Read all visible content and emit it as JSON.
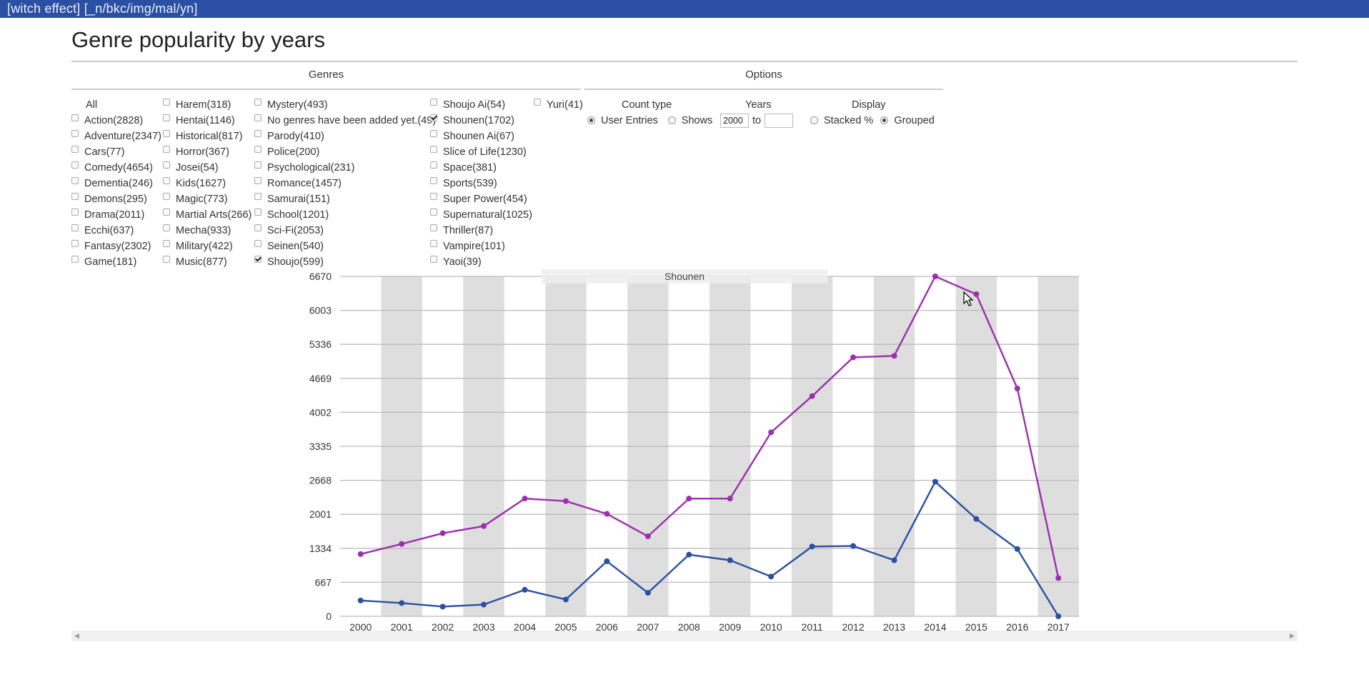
{
  "app": {
    "header": "[witch effect] [_n/bkc/img/mal/yn]"
  },
  "page": {
    "title": "Genre popularity by years"
  },
  "genres": {
    "heading": "Genres",
    "all_label": "All",
    "columns": [
      [
        {
          "label": "Action(2828)",
          "checked": false
        },
        {
          "label": "Adventure(2347)",
          "checked": false
        },
        {
          "label": "Cars(77)",
          "checked": false
        },
        {
          "label": "Comedy(4654)",
          "checked": false
        },
        {
          "label": "Dementia(246)",
          "checked": false
        },
        {
          "label": "Demons(295)",
          "checked": false
        },
        {
          "label": "Drama(2011)",
          "checked": false
        },
        {
          "label": "Ecchi(637)",
          "checked": false
        },
        {
          "label": "Fantasy(2302)",
          "checked": false
        },
        {
          "label": "Game(181)",
          "checked": false
        }
      ],
      [
        {
          "label": "Harem(318)",
          "checked": false
        },
        {
          "label": "Hentai(1146)",
          "checked": false
        },
        {
          "label": "Historical(817)",
          "checked": false
        },
        {
          "label": "Horror(367)",
          "checked": false
        },
        {
          "label": "Josei(54)",
          "checked": false
        },
        {
          "label": "Kids(1627)",
          "checked": false
        },
        {
          "label": "Magic(773)",
          "checked": false
        },
        {
          "label": "Martial Arts(266)",
          "checked": false
        },
        {
          "label": "Mecha(933)",
          "checked": false
        },
        {
          "label": "Military(422)",
          "checked": false
        },
        {
          "label": "Music(877)",
          "checked": false
        }
      ],
      [
        {
          "label": "Mystery(493)",
          "checked": false
        },
        {
          "label": "No genres have been added yet.(49)",
          "checked": false
        },
        {
          "label": "Parody(410)",
          "checked": false
        },
        {
          "label": "Police(200)",
          "checked": false
        },
        {
          "label": "Psychological(231)",
          "checked": false
        },
        {
          "label": "Romance(1457)",
          "checked": false
        },
        {
          "label": "Samurai(151)",
          "checked": false
        },
        {
          "label": "School(1201)",
          "checked": false
        },
        {
          "label": "Sci-Fi(2053)",
          "checked": false
        },
        {
          "label": "Seinen(540)",
          "checked": false
        },
        {
          "label": "Shoujo(599)",
          "checked": true
        }
      ],
      [
        {
          "label": "Shoujo Ai(54)",
          "checked": false
        },
        {
          "label": "Shounen(1702)",
          "checked": true
        },
        {
          "label": "Shounen Ai(67)",
          "checked": false
        },
        {
          "label": "Slice of Life(1230)",
          "checked": false
        },
        {
          "label": "Space(381)",
          "checked": false
        },
        {
          "label": "Sports(539)",
          "checked": false
        },
        {
          "label": "Super Power(454)",
          "checked": false
        },
        {
          "label": "Supernatural(1025)",
          "checked": false
        },
        {
          "label": "Thriller(87)",
          "checked": false
        },
        {
          "label": "Vampire(101)",
          "checked": false
        },
        {
          "label": "Yaoi(39)",
          "checked": false
        }
      ],
      [
        {
          "label": "Yuri(41)",
          "checked": false
        }
      ]
    ]
  },
  "options": {
    "heading": "Options",
    "count_type": {
      "label": "Count type",
      "choices": [
        "User Entries",
        "Shows"
      ],
      "selected": "User Entries"
    },
    "years": {
      "label": "Years",
      "from": "2000",
      "to_label": "to",
      "to": ""
    },
    "display": {
      "label": "Display",
      "choices": [
        "Stacked %",
        "Grouped"
      ],
      "selected": "Grouped"
    }
  },
  "chart_data": {
    "type": "line",
    "tooltip": "Shounen",
    "x": [
      "2000",
      "2001",
      "2002",
      "2003",
      "2004",
      "2005",
      "2006",
      "2007",
      "2008",
      "2009",
      "2010",
      "2011",
      "2012",
      "2013",
      "2014",
      "2015",
      "2016",
      "2017"
    ],
    "y_ticks": [
      0,
      667,
      1334,
      2001,
      2668,
      3335,
      4002,
      4669,
      5336,
      6003,
      6670
    ],
    "ylim": [
      0,
      6670
    ],
    "grid": true,
    "series": [
      {
        "color": "#9b2fae",
        "values": [
          1220,
          1420,
          1630,
          1770,
          2310,
          2260,
          2010,
          1570,
          2310,
          2310,
          3610,
          4320,
          5080,
          5110,
          6670,
          6320,
          4470,
          750
        ]
      },
      {
        "color": "#2b4fa3",
        "values": [
          310,
          260,
          190,
          230,
          520,
          330,
          1080,
          460,
          1210,
          1100,
          780,
          1370,
          1380,
          1100,
          2640,
          1910,
          1320,
          0
        ]
      }
    ],
    "colors": {
      "band": "#dedede",
      "gridline": "#bbbbbb"
    }
  }
}
